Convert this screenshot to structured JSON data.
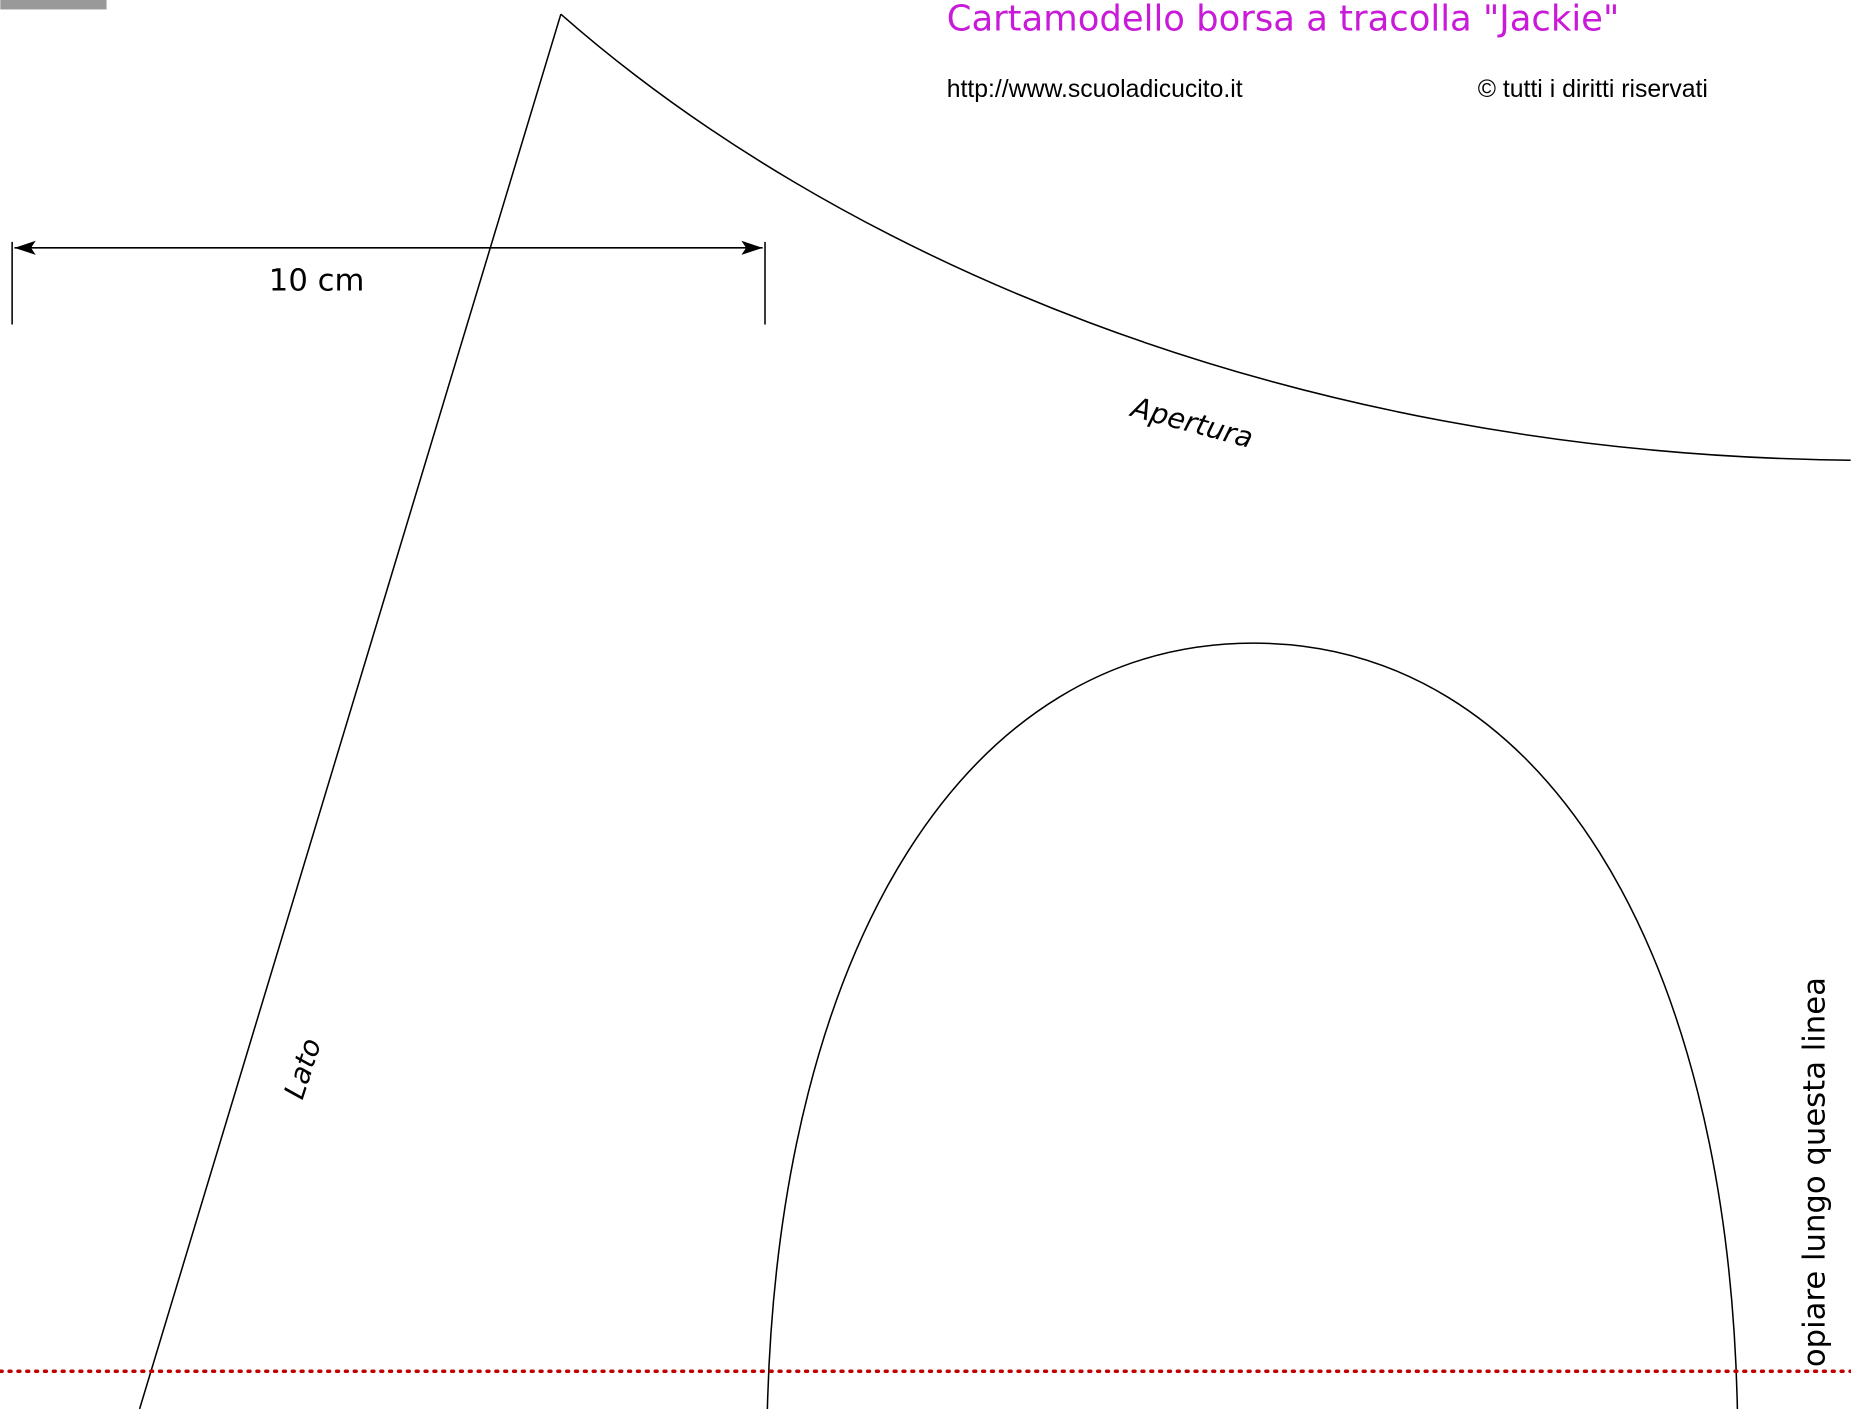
{
  "header": {
    "title": "Cartamodello borsa a tracolla \"Jackie\"",
    "url": "http://www.scuoladicucito.it",
    "copyright": "© tutti i diritti riservati"
  },
  "labels": {
    "scale": "10 cm",
    "opening": "Apertura",
    "side": "Lato",
    "fold": "opiare lungo questa linea"
  }
}
